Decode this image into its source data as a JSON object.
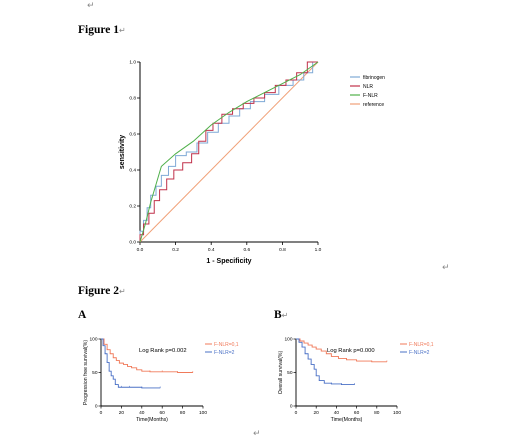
{
  "paragraph_mark": "↵",
  "figure1": {
    "heading": "Figure 1",
    "chart_data": {
      "type": "line",
      "xlabel": "1 - Specificity",
      "ylabel": "sensitivity",
      "xlim": [
        0,
        1
      ],
      "ylim": [
        0,
        1
      ],
      "xticks": [
        "0.0",
        "0.2",
        "0.4",
        "0.6",
        "0.8",
        "1.0"
      ],
      "yticks": [
        "0.0",
        "0.2",
        "0.4",
        "0.6",
        "0.8",
        "1.0"
      ],
      "legend_position": "top-right",
      "series": [
        {
          "name": "fibrinogen",
          "color": "#7fa9d6",
          "step": true,
          "points": [
            [
              0,
              0
            ],
            [
              0.02,
              0.06
            ],
            [
              0.04,
              0.12
            ],
            [
              0.06,
              0.19
            ],
            [
              0.09,
              0.26
            ],
            [
              0.12,
              0.31
            ],
            [
              0.16,
              0.37
            ],
            [
              0.2,
              0.42
            ],
            [
              0.26,
              0.48
            ],
            [
              0.32,
              0.5
            ],
            [
              0.38,
              0.55
            ],
            [
              0.44,
              0.61
            ],
            [
              0.5,
              0.66
            ],
            [
              0.56,
              0.7
            ],
            [
              0.62,
              0.74
            ],
            [
              0.7,
              0.78
            ],
            [
              0.78,
              0.82
            ],
            [
              0.86,
              0.87
            ],
            [
              0.92,
              0.9
            ],
            [
              0.97,
              0.94
            ],
            [
              1,
              1
            ]
          ]
        },
        {
          "name": "NLR",
          "color": "#c0304a",
          "step": true,
          "points": [
            [
              0,
              0
            ],
            [
              0.02,
              0.04
            ],
            [
              0.05,
              0.1
            ],
            [
              0.08,
              0.16
            ],
            [
              0.11,
              0.23
            ],
            [
              0.15,
              0.29
            ],
            [
              0.19,
              0.35
            ],
            [
              0.24,
              0.4
            ],
            [
              0.29,
              0.44
            ],
            [
              0.33,
              0.49
            ],
            [
              0.37,
              0.56
            ],
            [
              0.41,
              0.62
            ],
            [
              0.46,
              0.66
            ],
            [
              0.52,
              0.71
            ],
            [
              0.58,
              0.74
            ],
            [
              0.64,
              0.77
            ],
            [
              0.7,
              0.8
            ],
            [
              0.76,
              0.83
            ],
            [
              0.82,
              0.87
            ],
            [
              0.88,
              0.9
            ],
            [
              0.94,
              0.94
            ],
            [
              1,
              1
            ]
          ]
        },
        {
          "name": "F-NLR",
          "color": "#4fb04a",
          "step": false,
          "points": [
            [
              0,
              0
            ],
            [
              0.03,
              0.1
            ],
            [
              0.06,
              0.22
            ],
            [
              0.12,
              0.42
            ],
            [
              0.2,
              0.49
            ],
            [
              0.3,
              0.56
            ],
            [
              0.4,
              0.65
            ],
            [
              0.5,
              0.72
            ],
            [
              0.6,
              0.78
            ],
            [
              0.7,
              0.83
            ],
            [
              0.8,
              0.88
            ],
            [
              0.9,
              0.93
            ],
            [
              1,
              1
            ]
          ]
        },
        {
          "name": "reference",
          "color": "#f0a077",
          "step": false,
          "points": [
            [
              0,
              0
            ],
            [
              1,
              1
            ]
          ]
        }
      ]
    }
  },
  "figure2": {
    "heading": "Figure 2",
    "panels": [
      {
        "letter": "A",
        "chart_data": {
          "type": "line",
          "ylabel": "Progression free survival(%)",
          "xlabel": "Time(Months)",
          "xlim": [
            0,
            100
          ],
          "ylim": [
            0,
            100
          ],
          "xticks": [
            "0",
            "20",
            "40",
            "60",
            "80",
            "100"
          ],
          "yticks": [
            "0",
            "50",
            "100"
          ],
          "annotation": "Log Rank p=0.002",
          "legend_position": "top-right",
          "series": [
            {
              "name": "F-NLR=0,1",
              "color": "#f07a5a",
              "points": [
                [
                  0,
                  100
                ],
                [
                  3,
                  92
                ],
                [
                  6,
                  84
                ],
                [
                  9,
                  78
                ],
                [
                  12,
                  72
                ],
                [
                  15,
                  68
                ],
                [
                  18,
                  64
                ],
                [
                  22,
                  62
                ],
                [
                  26,
                  59
                ],
                [
                  30,
                  57
                ],
                [
                  35,
                  54
                ],
                [
                  40,
                  52
                ],
                [
                  48,
                  51
                ],
                [
                  60,
                  51
                ],
                [
                  75,
                  50
                ],
                [
                  90,
                  50
                ]
              ]
            },
            {
              "name": "F-NLR=2",
              "color": "#4a70c6",
              "points": [
                [
                  0,
                  100
                ],
                [
                  2,
                  90
                ],
                [
                  4,
                  78
                ],
                [
                  6,
                  65
                ],
                [
                  8,
                  52
                ],
                [
                  10,
                  45
                ],
                [
                  12,
                  40
                ],
                [
                  14,
                  32
                ],
                [
                  17,
                  28
                ],
                [
                  20,
                  28
                ],
                [
                  28,
                  28
                ],
                [
                  40,
                  27
                ],
                [
                  58,
                  27
                ]
              ]
            }
          ]
        }
      },
      {
        "letter": "B",
        "chart_data": {
          "type": "line",
          "ylabel": "Overall survival(%)",
          "xlabel": "Time(Months)",
          "xlim": [
            0,
            100
          ],
          "ylim": [
            0,
            100
          ],
          "xticks": [
            "0",
            "20",
            "40",
            "60",
            "80",
            "100"
          ],
          "yticks": [
            "0",
            "50",
            "100"
          ],
          "annotation": "Log Rank p=0.000",
          "legend_position": "top-right",
          "series": [
            {
              "name": "F-NLR=0,1",
              "color": "#f07a5a",
              "points": [
                [
                  0,
                  100
                ],
                [
                  4,
                  97
                ],
                [
                  8,
                  94
                ],
                [
                  12,
                  91
                ],
                [
                  16,
                  88
                ],
                [
                  20,
                  85
                ],
                [
                  25,
                  82
                ],
                [
                  30,
                  78
                ],
                [
                  35,
                  74
                ],
                [
                  42,
                  71
                ],
                [
                  50,
                  69
                ],
                [
                  60,
                  67
                ],
                [
                  75,
                  66
                ],
                [
                  90,
                  66
                ]
              ]
            },
            {
              "name": "F-NLR=2",
              "color": "#4a70c6",
              "points": [
                [
                  0,
                  100
                ],
                [
                  3,
                  95
                ],
                [
                  6,
                  88
                ],
                [
                  9,
                  78
                ],
                [
                  12,
                  70
                ],
                [
                  15,
                  62
                ],
                [
                  18,
                  55
                ],
                [
                  20,
                  45
                ],
                [
                  23,
                  38
                ],
                [
                  28,
                  34
                ],
                [
                  35,
                  33
                ],
                [
                  45,
                  32
                ],
                [
                  58,
                  32
                ]
              ]
            }
          ]
        }
      }
    ]
  }
}
